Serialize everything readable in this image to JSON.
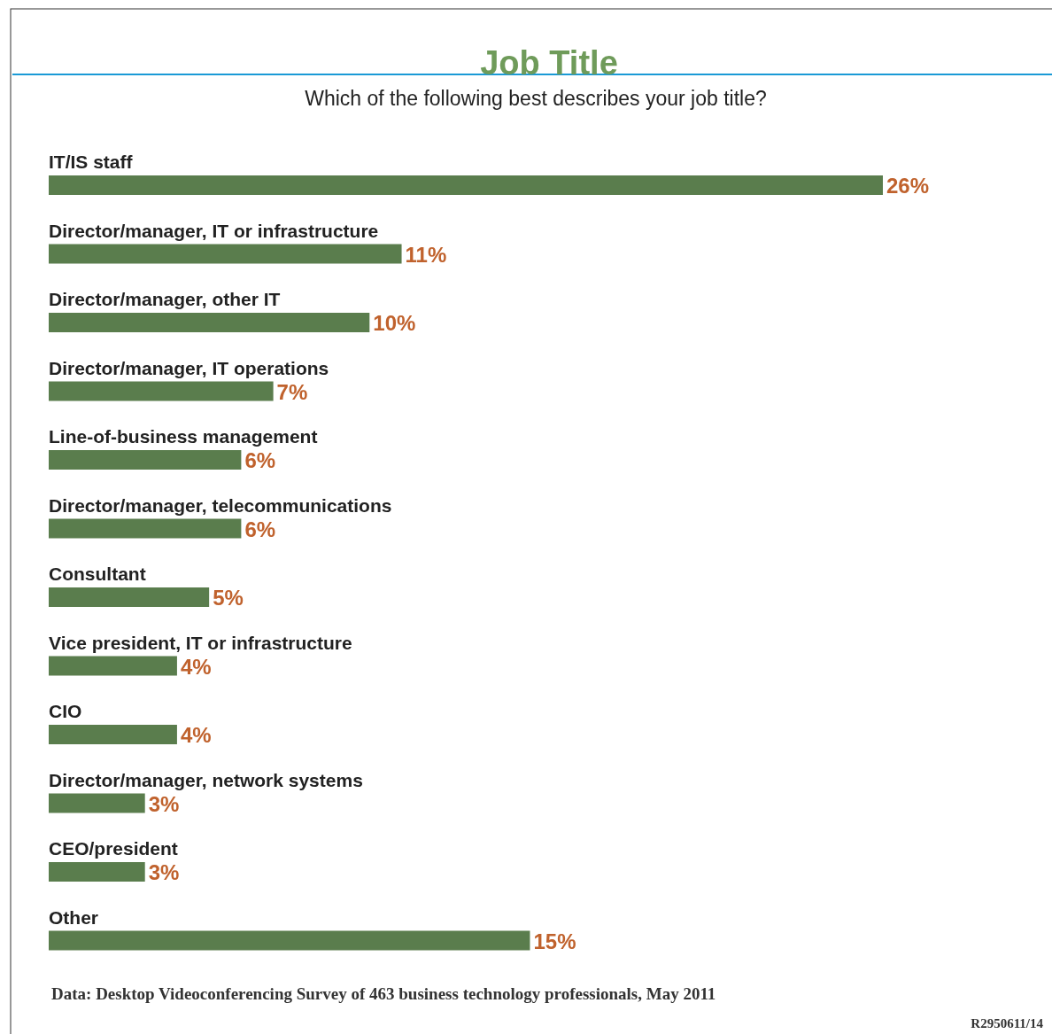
{
  "chart_data": {
    "type": "bar",
    "orientation": "horizontal",
    "title": "Job Title",
    "subtitle": "Which of the following best describes your job title?",
    "categories": [
      "IT/IS staff",
      "Director/manager, IT or infrastructure",
      "Director/manager, other IT",
      "Director/manager, IT operations",
      "Line-of-business management",
      "Director/manager, telecommunications",
      "Consultant",
      "Vice president, IT or infrastructure",
      "CIO",
      "Director/manager, network systems",
      "CEO/president",
      "Other"
    ],
    "values": [
      26,
      11,
      10,
      7,
      6,
      6,
      5,
      4,
      4,
      3,
      3,
      15
    ],
    "value_labels": [
      "26%",
      "11%",
      "10%",
      "7%",
      "6%",
      "6%",
      "5%",
      "4%",
      "4%",
      "3%",
      "3%",
      "15%"
    ],
    "color": "#5a7d4d",
    "annotations": [
      "Data: Desktop Videoconferencing Survey of 463 business technology professionals, May 2011",
      "R2950611/14"
    ]
  }
}
